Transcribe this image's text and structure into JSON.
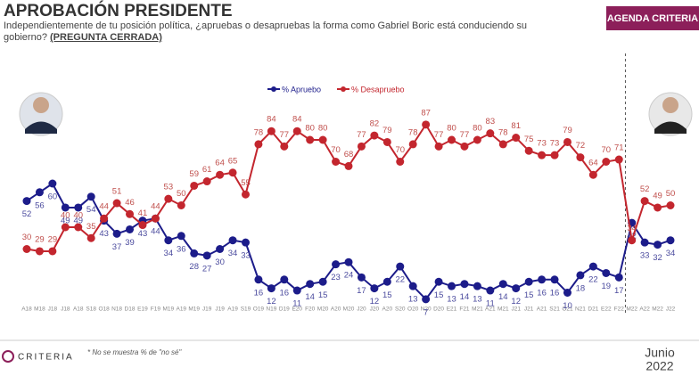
{
  "chart_data": {
    "type": "line",
    "title": "APROBACIÓN PRESIDENTE",
    "subtitle": "Independientemente de tu posición política, ¿apruebas o desapruebas la forma como Gabriel Boric está conduciendo su gobierno?",
    "subtitle_tag": "(PREGUNTA CERRADA)",
    "button": "AGENDA CRITERIA",
    "footnote": "* No se muestra % de \"no sé\"",
    "brand": "CRITERIA",
    "date_month": "Junio",
    "date_year": "2022",
    "categories": [
      "A18",
      "M18",
      "J18",
      "J18",
      "A18",
      "S18",
      "O18",
      "N18",
      "D18",
      "E19",
      "F19",
      "M19",
      "A19",
      "M19",
      "J19",
      "J19",
      "A19",
      "S19",
      "O19",
      "N19",
      "D19",
      "E20",
      "F20",
      "M20",
      "A20",
      "M20",
      "J20",
      "J20",
      "A20",
      "S20",
      "O20",
      "N20",
      "D20",
      "E21",
      "F21",
      "M21",
      "A21",
      "M21",
      "J21",
      "J21",
      "A21",
      "S21",
      "O21",
      "N21",
      "D21",
      "E22",
      "F22",
      "M22",
      "A22",
      "M22",
      "J22"
    ],
    "series": [
      {
        "name": "% Apruebo",
        "color": "#1c1c8a",
        "label_color": "#4b4b9e",
        "values": [
          52,
          56,
          60,
          49,
          49,
          54,
          43,
          37,
          39,
          43,
          44,
          34,
          36,
          28,
          27,
          30,
          34,
          33,
          16,
          12,
          16,
          11,
          14,
          15,
          23,
          24,
          17,
          12,
          15,
          22,
          13,
          7,
          15,
          13,
          14,
          13,
          11,
          14,
          12,
          15,
          16,
          16,
          10,
          18,
          22,
          19,
          17,
          42,
          33,
          32,
          34
        ]
      },
      {
        "name": "% Desapruebo",
        "color": "#c3262e",
        "label_color": "#c0504d",
        "values": [
          30,
          29,
          29,
          40,
          40,
          35,
          44,
          51,
          46,
          41,
          44,
          53,
          50,
          59,
          61,
          64,
          65,
          55,
          78,
          84,
          77,
          84,
          80,
          80,
          70,
          68,
          77,
          82,
          79,
          70,
          78,
          87,
          77,
          80,
          77,
          80,
          83,
          78,
          81,
          75,
          73,
          73,
          79,
          72,
          64,
          70,
          71,
          34,
          52,
          49,
          50
        ]
      }
    ],
    "ylim": [
      0,
      100
    ]
  }
}
